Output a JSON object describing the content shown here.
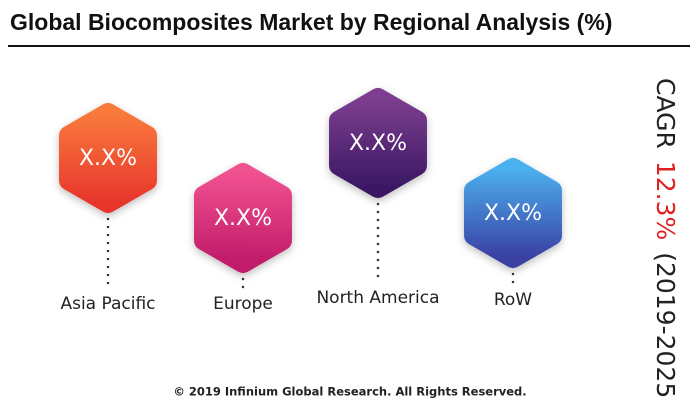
{
  "title": "Global Biocomposites Market by Regional Analysis (%)",
  "regions": [
    {
      "label": "Asia Pacific",
      "value": "X.X%"
    },
    {
      "label": "Europe",
      "value": "X.X%"
    },
    {
      "label": "North America",
      "value": "X.X%"
    },
    {
      "label": "RoW",
      "value": "X.X%"
    }
  ],
  "cagr": {
    "label": "CAGR",
    "value": "12.3%",
    "period": "(2019-2025)"
  },
  "footer": "© 2019 Infinium Global Research. All Rights Reserved."
}
